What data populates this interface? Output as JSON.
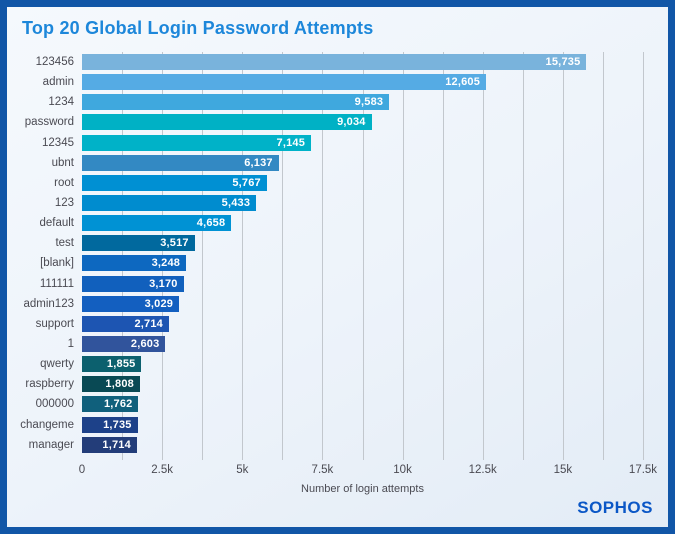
{
  "theme": {
    "border_color": "#1156a7",
    "background_top": "#f5f9fd",
    "background_bottom": "#e3ecf6",
    "title_color": "#1d87da",
    "gridline_color": "#c2c7cd",
    "label_color": "#4a4a52",
    "value_label_color": "#ffffff",
    "logo_color": "#0b57c6"
  },
  "branding": {
    "logo_text": "SOPHOS"
  },
  "chart_data": {
    "type": "bar",
    "orientation": "horizontal",
    "title": "Top 20 Global Login Password Attempts",
    "xlabel": "Number of login attempts",
    "xlim": [
      0,
      17500
    ],
    "grid_interval": 1250,
    "grid": true,
    "legend": false,
    "x_ticks": [
      {
        "value": 0,
        "label": "0"
      },
      {
        "value": 2500,
        "label": "2.5k"
      },
      {
        "value": 5000,
        "label": "5k"
      },
      {
        "value": 7500,
        "label": "7.5k"
      },
      {
        "value": 10000,
        "label": "10k"
      },
      {
        "value": 12500,
        "label": "12.5k"
      },
      {
        "value": 15000,
        "label": "15k"
      },
      {
        "value": 17500,
        "label": "17.5k"
      }
    ],
    "bars": [
      {
        "label": "123456",
        "value": 15735,
        "display": "15,735",
        "color": "#79b3dc"
      },
      {
        "label": "admin",
        "value": 12605,
        "display": "12,605",
        "color": "#55abe4"
      },
      {
        "label": "1234",
        "value": 9583,
        "display": "9,583",
        "color": "#3fa8de"
      },
      {
        "label": "password",
        "value": 9034,
        "display": "9,034",
        "color": "#00b1c5"
      },
      {
        "label": "12345",
        "value": 7145,
        "display": "7,145",
        "color": "#00b2c8"
      },
      {
        "label": "ubnt",
        "value": 6137,
        "display": "6,137",
        "color": "#3389c3"
      },
      {
        "label": "root",
        "value": 5767,
        "display": "5,767",
        "color": "#0090d3"
      },
      {
        "label": "123",
        "value": 5433,
        "display": "5,433",
        "color": "#008ccf"
      },
      {
        "label": "default",
        "value": 4658,
        "display": "4,658",
        "color": "#0092d4"
      },
      {
        "label": "test",
        "value": 3517,
        "display": "3,517",
        "color": "#01699e"
      },
      {
        "label": "[blank]",
        "value": 3248,
        "display": "3,248",
        "color": "#0d68c0"
      },
      {
        "label": "111111",
        "value": 3170,
        "display": "3,170",
        "color": "#1160bd"
      },
      {
        "label": "admin123",
        "value": 3029,
        "display": "3,029",
        "color": "#135fc0"
      },
      {
        "label": "support",
        "value": 2714,
        "display": "2,714",
        "color": "#1d55b2"
      },
      {
        "label": "1",
        "value": 2603,
        "display": "2,603",
        "color": "#31549c"
      },
      {
        "label": "qwerty",
        "value": 1855,
        "display": "1,855",
        "color": "#0c606e"
      },
      {
        "label": "raspberry",
        "value": 1808,
        "display": "1,808",
        "color": "#094954"
      },
      {
        "label": "000000",
        "value": 1762,
        "display": "1,762",
        "color": "#10607c"
      },
      {
        "label": "changeme",
        "value": 1735,
        "display": "1,735",
        "color": "#1d4189"
      },
      {
        "label": "manager",
        "value": 1714,
        "display": "1,714",
        "color": "#233d79"
      }
    ]
  }
}
